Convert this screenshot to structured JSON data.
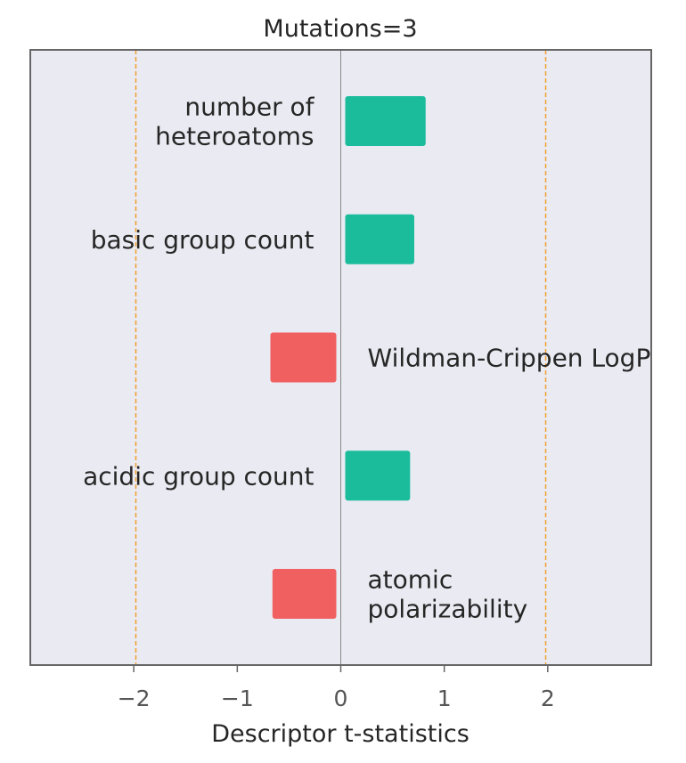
{
  "chart_data": {
    "type": "bar",
    "orientation": "horizontal",
    "title": "Mutations=3",
    "xlabel": "Descriptor t-statistics",
    "ylabel": "",
    "xlim": [
      -3.0,
      3.0
    ],
    "xticks": [
      -2,
      -1,
      0,
      1,
      2
    ],
    "xtick_labels": [
      "−2",
      "−1",
      "0",
      "1",
      "2"
    ],
    "threshold_lines": [
      -1.98,
      1.98
    ],
    "grid": false,
    "colors": {
      "positive": "#1abc9c",
      "negative": "#f06060",
      "threshold": "#f0a030",
      "background": "#eaeaf2"
    },
    "bars": [
      {
        "label": "number of heteroatoms",
        "label_lines": [
          "number of",
          "heteroatoms"
        ],
        "value": 0.82
      },
      {
        "label": "basic group count",
        "label_lines": [
          "basic group count"
        ],
        "value": 0.71
      },
      {
        "label": "Wildman-Crippen LogP",
        "label_lines": [
          "Wildman-Crippen LogP"
        ],
        "value": -0.68
      },
      {
        "label": "acidic group count",
        "label_lines": [
          "acidic group count"
        ],
        "value": 0.67
      },
      {
        "label": "atomic polarizability",
        "label_lines": [
          "atomic",
          "polarizability"
        ],
        "value": -0.66
      }
    ]
  }
}
